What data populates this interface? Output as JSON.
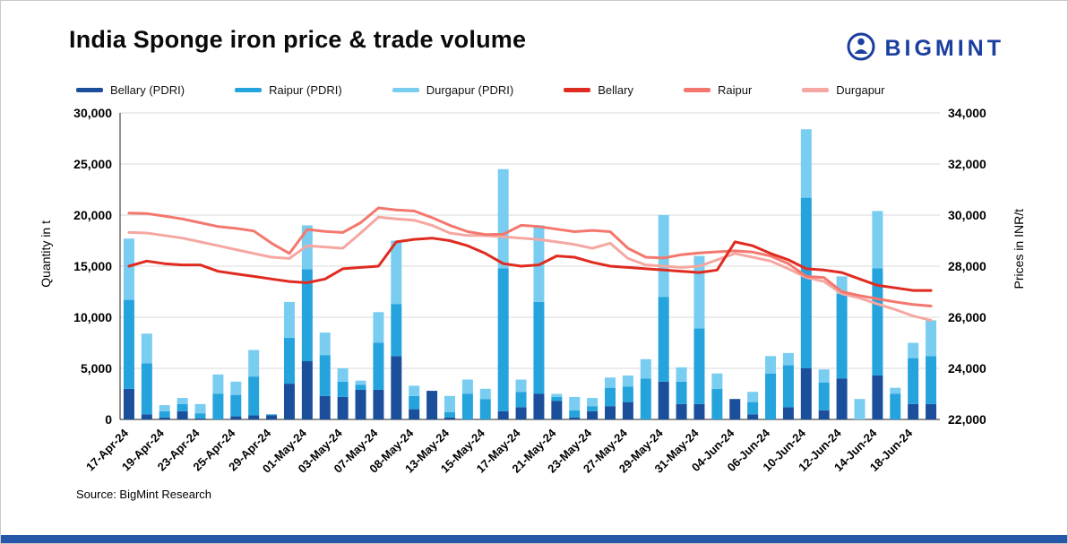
{
  "header": {
    "title": "India Sponge iron price & trade volume",
    "logo_text": "BIGMINT",
    "logo_icon": "bigmint-circle-person-icon"
  },
  "footer": {
    "source": "Source: BigMint Research"
  },
  "colors": {
    "brand_blue": "#1b3f9f",
    "bottom_bar": "#2757a8",
    "grid": "#d9d9d9",
    "axis": "#222222"
  },
  "chart_data": {
    "type": "bar",
    "subtype": "stacked-bars-with-price-lines",
    "title": "India Sponge iron price & trade volume",
    "grid": true,
    "legend_position": "top",
    "left_axis": {
      "label": "Quantity in t",
      "min": 0,
      "max": 30000,
      "step": 5000,
      "ticks": [
        0,
        5000,
        10000,
        15000,
        20000,
        25000,
        30000
      ]
    },
    "right_axis": {
      "label": "Prices in INR/t",
      "min": 22000,
      "max": 34000,
      "step": 2000,
      "ticks": [
        22000,
        24000,
        26000,
        28000,
        30000,
        32000,
        34000
      ]
    },
    "categories": [
      "17-Apr-24",
      "",
      "19-Apr-24",
      "",
      "23-Apr-24",
      "",
      "25-Apr-24",
      "",
      "29-Apr-24",
      "",
      "01-May-24",
      "",
      "03-May-24",
      "",
      "07-May-24",
      "",
      "08-May-24",
      "",
      "13-May-24",
      "",
      "15-May-24",
      "",
      "17-May-24",
      "",
      "21-May-24",
      "",
      "23-May-24",
      "",
      "27-May-24",
      "",
      "29-May-24",
      "",
      "31-May-24",
      "",
      "04-Jun-24",
      "",
      "06-Jun-24",
      "",
      "10-Jun-24",
      "",
      "12-Jun-24",
      "",
      "14-Jun-24",
      "",
      "18-Jun-24",
      ""
    ],
    "bar_series": [
      {
        "name": "Bellary (PDRI)",
        "color": "#1b4f9c",
        "values": [
          3000,
          500,
          200,
          800,
          100,
          0,
          300,
          400,
          400,
          3500,
          5700,
          2300,
          2200,
          2900,
          2900,
          6200,
          1000,
          2800,
          200,
          0,
          0,
          800,
          1200,
          2500,
          1800,
          200,
          800,
          1300,
          1700,
          0,
          3700,
          1500,
          1500,
          0,
          2000,
          500,
          0,
          1200,
          5000,
          900,
          4000,
          0,
          4300,
          0,
          1500,
          1500
        ]
      },
      {
        "name": "Raipur (PDRI)",
        "color": "#25a3dc",
        "values": [
          8700,
          5000,
          600,
          700,
          500,
          2500,
          2100,
          3800,
          100,
          4500,
          9000,
          4000,
          1500,
          500,
          4600,
          5100,
          1300,
          0,
          500,
          2500,
          2000,
          14000,
          1500,
          9000,
          400,
          700,
          500,
          1800,
          1500,
          4000,
          8300,
          2200,
          7400,
          3000,
          0,
          1200,
          4500,
          4100,
          16700,
          2700,
          8300,
          0,
          10500,
          2500,
          4500,
          4700
        ]
      },
      {
        "name": "Durgapur (PDRI)",
        "color": "#79cdf0",
        "values": [
          6000,
          2900,
          600,
          600,
          900,
          1900,
          1300,
          2600,
          0,
          3500,
          4300,
          2200,
          1300,
          400,
          3000,
          6200,
          1000,
          0,
          1600,
          1400,
          1000,
          9700,
          1200,
          7500,
          300,
          1300,
          800,
          1000,
          1100,
          1900,
          8000,
          1400,
          7100,
          1500,
          0,
          1000,
          1700,
          1200,
          6700,
          1300,
          1700,
          2000,
          5600,
          600,
          1500,
          3500
        ]
      }
    ],
    "line_series": [
      {
        "name": "Bellary",
        "color": "#e02b20",
        "values": [
          28000,
          28200,
          28100,
          28050,
          28050,
          27800,
          27700,
          27600,
          27500,
          27400,
          27350,
          27500,
          27900,
          27950,
          28000,
          28950,
          29050,
          29100,
          29000,
          28800,
          28500,
          28100,
          28000,
          28050,
          28400,
          28350,
          28150,
          28000,
          27950,
          27900,
          27850,
          27800,
          27750,
          27850,
          28950,
          28800,
          28500,
          28250,
          27900,
          27850,
          27750,
          27500,
          27250,
          27150,
          27050,
          27050
        ]
      },
      {
        "name": "Raipur",
        "color": "#f4776e",
        "values": [
          30080,
          30060,
          29960,
          29850,
          29700,
          29550,
          29480,
          29380,
          28900,
          28500,
          29440,
          29360,
          29320,
          29700,
          30280,
          30200,
          30160,
          29900,
          29600,
          29350,
          29240,
          29250,
          29600,
          29550,
          29450,
          29350,
          29400,
          29350,
          28700,
          28350,
          28320,
          28450,
          28520,
          28560,
          28600,
          28550,
          28400,
          28100,
          27600,
          27550,
          27000,
          26850,
          26720,
          26600,
          26500,
          26440
        ]
      },
      {
        "name": "Durgapur",
        "color": "#f5a7a1",
        "values": [
          29320,
          29300,
          29200,
          29100,
          28950,
          28800,
          28650,
          28500,
          28350,
          28300,
          28800,
          28750,
          28700,
          29300,
          29920,
          29850,
          29800,
          29600,
          29300,
          29200,
          29200,
          29150,
          29100,
          29050,
          28950,
          28850,
          28700,
          28900,
          28300,
          28050,
          28000,
          27950,
          28000,
          28250,
          28500,
          28350,
          28200,
          27900,
          27560,
          27400,
          26920,
          26750,
          26520,
          26300,
          26050,
          25880
        ]
      }
    ]
  }
}
